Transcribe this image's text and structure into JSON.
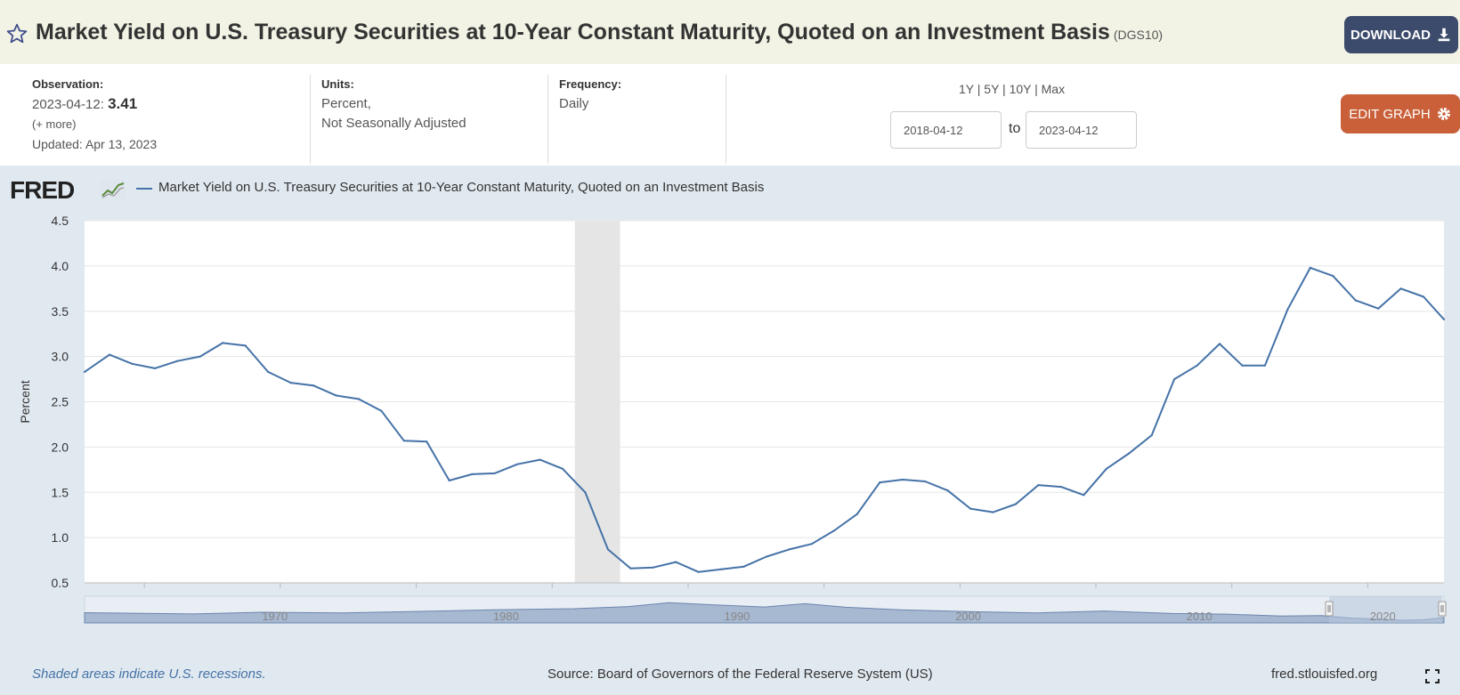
{
  "header": {
    "title": "Market Yield on U.S. Treasury Securities at 10-Year Constant Maturity, Quoted on an Investment Basis",
    "series_code": "(DGS10)",
    "download_label": "DOWNLOAD"
  },
  "meta": {
    "observation_label": "Observation:",
    "observation_date": "2023-04-12:",
    "observation_value": "3.41",
    "more_label": "(+ more)",
    "updated": "Updated: Apr 13, 2023",
    "units_label": "Units:",
    "units_line1": "Percent,",
    "units_line2": "Not Seasonally Adjusted",
    "frequency_label": "Frequency:",
    "frequency_value": "Daily",
    "range_links": "1Y | 5Y | 10Y | Max",
    "start_date": "2018-04-12",
    "to_label": "to",
    "end_date": "2023-04-12",
    "edit_label": "EDIT GRAPH"
  },
  "chart_header": {
    "logo_text": "FRED",
    "legend_label": "Market Yield on U.S. Treasury Securities at 10-Year Constant Maturity, Quoted on an Investment Basis"
  },
  "footer": {
    "recession_note": "Shaded areas indicate U.S. recessions.",
    "source": "Source: Board of Governors of the Federal Reserve System (US)",
    "site": "fred.stlouisfed.org"
  },
  "colors": {
    "line": "#4572a7",
    "recession": "#e5e5e5",
    "background": "#e1e9f0"
  },
  "chart_data": {
    "type": "line",
    "title": "",
    "xlabel": "",
    "ylabel": "Percent",
    "ylim": [
      0.5,
      4.5
    ],
    "yticks": [
      "0.5",
      "1.0",
      "1.5",
      "2.0",
      "2.5",
      "3.0",
      "3.5",
      "4.0",
      "4.5"
    ],
    "x_range": [
      "2018-04-12",
      "2023-04-12"
    ],
    "xticks": [
      "2018-07",
      "2019-01",
      "2019-07",
      "2020-01",
      "2020-07",
      "2021-01",
      "2021-07",
      "2022-01",
      "2022-07",
      "2023-01"
    ],
    "recessions": [
      {
        "start": "2020-02",
        "end": "2020-04"
      }
    ],
    "series": [
      {
        "name": "DGS10",
        "x": [
          "2018-04",
          "2018-05",
          "2018-06",
          "2018-07",
          "2018-08",
          "2018-09",
          "2018-10",
          "2018-11",
          "2018-12",
          "2019-01",
          "2019-02",
          "2019-03",
          "2019-04",
          "2019-05",
          "2019-06",
          "2019-07",
          "2019-08",
          "2019-09",
          "2019-10",
          "2019-11",
          "2019-12",
          "2020-01",
          "2020-02",
          "2020-03",
          "2020-04",
          "2020-05",
          "2020-06",
          "2020-07",
          "2020-08",
          "2020-09",
          "2020-10",
          "2020-11",
          "2020-12",
          "2021-01",
          "2021-02",
          "2021-03",
          "2021-04",
          "2021-05",
          "2021-06",
          "2021-07",
          "2021-08",
          "2021-09",
          "2021-10",
          "2021-11",
          "2021-12",
          "2022-01",
          "2022-02",
          "2022-03",
          "2022-04",
          "2022-05",
          "2022-06",
          "2022-07",
          "2022-08",
          "2022-09",
          "2022-10",
          "2022-11",
          "2022-12",
          "2023-01",
          "2023-02",
          "2023-03",
          "2023-04"
        ],
        "values": [
          2.83,
          3.02,
          2.92,
          2.87,
          2.95,
          3.0,
          3.15,
          3.12,
          2.83,
          2.71,
          2.68,
          2.57,
          2.53,
          2.4,
          2.07,
          2.06,
          1.63,
          1.7,
          1.71,
          1.81,
          1.86,
          1.76,
          1.5,
          0.87,
          0.66,
          0.67,
          0.73,
          0.62,
          0.65,
          0.68,
          0.79,
          0.87,
          0.93,
          1.08,
          1.26,
          1.61,
          1.64,
          1.62,
          1.52,
          1.32,
          1.28,
          1.37,
          1.58,
          1.56,
          1.47,
          1.76,
          1.93,
          2.13,
          2.75,
          2.9,
          3.14,
          2.9,
          2.9,
          3.52,
          3.98,
          3.89,
          3.62,
          3.53,
          3.75,
          3.66,
          3.41
        ]
      }
    ],
    "navigator": {
      "labels": [
        "1970",
        "1980",
        "1990",
        "2000",
        "2010",
        "2020"
      ]
    }
  }
}
